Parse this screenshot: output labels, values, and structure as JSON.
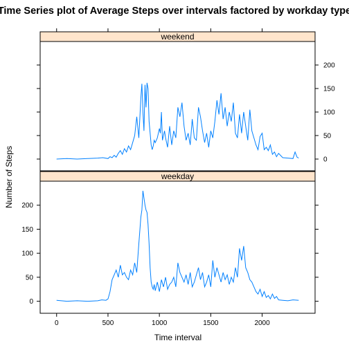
{
  "chart_data": {
    "type": "line",
    "title": "Time Series plot of Average Steps over intervals factored by workday type",
    "xlabel": "Time interval",
    "ylabel": "Number of Steps",
    "xlim": [
      -160,
      2515
    ],
    "ylim": [
      -25,
      250
    ],
    "x_ticks": [
      0,
      500,
      1000,
      1500,
      2000
    ],
    "y_ticks": [
      0,
      50,
      100,
      150,
      200
    ],
    "line_color": "#0080ff",
    "strip_color": "#ffe5cc",
    "panels": [
      {
        "name": "weekend",
        "y_tick_side": "right",
        "x": [
          0,
          100,
          200,
          300,
          400,
          450,
          500,
          520,
          540,
          560,
          580,
          600,
          620,
          640,
          660,
          680,
          700,
          720,
          740,
          760,
          780,
          800,
          820,
          830,
          840,
          850,
          860,
          870,
          880,
          890,
          900,
          910,
          920,
          930,
          940,
          950,
          960,
          980,
          1000,
          1010,
          1020,
          1030,
          1050,
          1060,
          1080,
          1100,
          1120,
          1140,
          1160,
          1180,
          1200,
          1220,
          1240,
          1260,
          1280,
          1300,
          1320,
          1340,
          1360,
          1380,
          1400,
          1420,
          1440,
          1460,
          1480,
          1500,
          1520,
          1540,
          1560,
          1580,
          1600,
          1620,
          1640,
          1660,
          1680,
          1700,
          1720,
          1740,
          1760,
          1780,
          1800,
          1820,
          1840,
          1860,
          1880,
          1900,
          1920,
          1940,
          1960,
          1980,
          2000,
          2020,
          2040,
          2060,
          2080,
          2100,
          2120,
          2140,
          2160,
          2200,
          2250,
          2300,
          2320,
          2340,
          2355
        ],
        "y": [
          0,
          1,
          0,
          1,
          2,
          3,
          1,
          5,
          3,
          8,
          4,
          12,
          18,
          10,
          22,
          15,
          28,
          20,
          35,
          50,
          90,
          45,
          130,
          160,
          100,
          60,
          158,
          110,
          162,
          150,
          80,
          55,
          30,
          20,
          28,
          40,
          35,
          45,
          65,
          55,
          100,
          40,
          60,
          45,
          25,
          70,
          30,
          60,
          45,
          110,
          90,
          120,
          70,
          40,
          55,
          30,
          85,
          45,
          40,
          110,
          90,
          60,
          35,
          55,
          25,
          60,
          45,
          80,
          125,
          95,
          140,
          85,
          110,
          70,
          100,
          80,
          120,
          55,
          45,
          95,
          55,
          100,
          70,
          40,
          105,
          60,
          45,
          30,
          20,
          48,
          55,
          20,
          25,
          18,
          30,
          10,
          15,
          5,
          12,
          3,
          2,
          1,
          15,
          4,
          2
        ]
      },
      {
        "name": "weekday",
        "y_tick_side": "left",
        "x": [
          0,
          100,
          200,
          300,
          400,
          440,
          480,
          500,
          520,
          540,
          560,
          580,
          600,
          620,
          640,
          660,
          680,
          700,
          720,
          740,
          760,
          780,
          800,
          820,
          830,
          840,
          850,
          860,
          870,
          880,
          890,
          900,
          910,
          920,
          930,
          940,
          950,
          960,
          980,
          1000,
          1020,
          1040,
          1060,
          1080,
          1100,
          1120,
          1140,
          1160,
          1180,
          1200,
          1220,
          1240,
          1260,
          1280,
          1300,
          1320,
          1340,
          1360,
          1380,
          1400,
          1420,
          1440,
          1460,
          1480,
          1500,
          1520,
          1540,
          1560,
          1580,
          1600,
          1620,
          1640,
          1660,
          1680,
          1700,
          1720,
          1740,
          1760,
          1780,
          1800,
          1820,
          1840,
          1860,
          1880,
          1900,
          1920,
          1940,
          1960,
          1980,
          2000,
          2020,
          2040,
          2060,
          2080,
          2100,
          2120,
          2140,
          2160,
          2200,
          2250,
          2300,
          2355
        ],
        "y": [
          2,
          0,
          1,
          0,
          1,
          3,
          2,
          5,
          20,
          45,
          55,
          65,
          50,
          75,
          55,
          60,
          50,
          45,
          65,
          55,
          80,
          60,
          120,
          175,
          190,
          230,
          215,
          200,
          190,
          185,
          160,
          120,
          70,
          40,
          30,
          25,
          35,
          22,
          40,
          20,
          45,
          30,
          50,
          25,
          35,
          40,
          50,
          30,
          80,
          60,
          50,
          40,
          55,
          35,
          60,
          30,
          40,
          55,
          70,
          45,
          60,
          30,
          40,
          55,
          30,
          85,
          50,
          70,
          55,
          40,
          60,
          45,
          55,
          35,
          50,
          40,
          70,
          50,
          110,
          85,
          115,
          70,
          60,
          45,
          40,
          30,
          20,
          15,
          25,
          10,
          20,
          8,
          12,
          5,
          15,
          6,
          10,
          3,
          2,
          1,
          3,
          2
        ]
      }
    ]
  }
}
